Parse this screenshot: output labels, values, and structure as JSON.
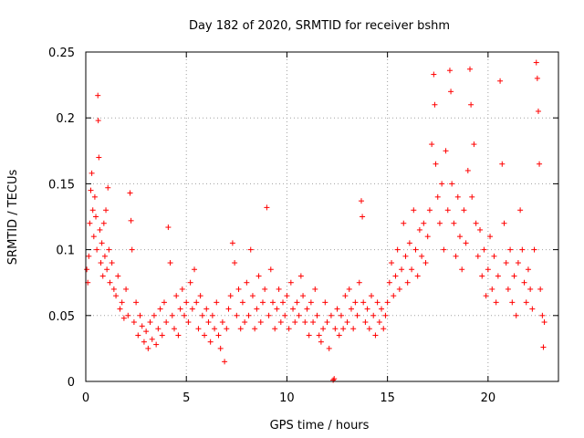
{
  "chart_data": {
    "type": "scatter",
    "title": "Day 182 of 2020, SRMTID for receiver bshm",
    "xlabel": "GPS time / hours",
    "ylabel": "SRMTID / TECUs",
    "xlim": [
      0,
      23.5
    ],
    "ylim": [
      0,
      0.25
    ],
    "xticks": [
      0,
      5,
      10,
      15,
      20
    ],
    "yticks": [
      0,
      0.05,
      0.1,
      0.15,
      0.2,
      0.25
    ],
    "xtick_labels": [
      "0",
      "5",
      "10",
      "15",
      "20"
    ],
    "ytick_labels": [
      "0",
      "0.05",
      "0.1",
      "0.15",
      "0.2",
      "0.25"
    ],
    "grid": true,
    "marker": "+",
    "marker_color": "#ff0000",
    "series": [
      {
        "name": "SRMTID",
        "points": [
          [
            0.05,
            0.085
          ],
          [
            0.1,
            0.075
          ],
          [
            0.15,
            0.095
          ],
          [
            0.2,
            0.12
          ],
          [
            0.25,
            0.145
          ],
          [
            0.3,
            0.158
          ],
          [
            0.35,
            0.13
          ],
          [
            0.4,
            0.11
          ],
          [
            0.45,
            0.14
          ],
          [
            0.5,
            0.125
          ],
          [
            0.55,
            0.1
          ],
          [
            0.6,
            0.217
          ],
          [
            0.62,
            0.198
          ],
          [
            0.65,
            0.17
          ],
          [
            0.7,
            0.115
          ],
          [
            0.75,
            0.09
          ],
          [
            0.8,
            0.105
          ],
          [
            0.85,
            0.08
          ],
          [
            0.9,
            0.12
          ],
          [
            0.95,
            0.095
          ],
          [
            1.0,
            0.13
          ],
          [
            1.05,
            0.085
          ],
          [
            1.1,
            0.147
          ],
          [
            1.15,
            0.1
          ],
          [
            1.2,
            0.075
          ],
          [
            1.3,
            0.09
          ],
          [
            1.4,
            0.07
          ],
          [
            1.5,
            0.065
          ],
          [
            1.6,
            0.08
          ],
          [
            1.7,
            0.055
          ],
          [
            1.8,
            0.06
          ],
          [
            1.9,
            0.048
          ],
          [
            2.0,
            0.07
          ],
          [
            2.1,
            0.05
          ],
          [
            2.2,
            0.143
          ],
          [
            2.25,
            0.122
          ],
          [
            2.3,
            0.1
          ],
          [
            2.4,
            0.045
          ],
          [
            2.5,
            0.06
          ],
          [
            2.6,
            0.035
          ],
          [
            2.7,
            0.05
          ],
          [
            2.8,
            0.042
          ],
          [
            2.9,
            0.03
          ],
          [
            3.0,
            0.038
          ],
          [
            3.1,
            0.025
          ],
          [
            3.2,
            0.045
          ],
          [
            3.3,
            0.032
          ],
          [
            3.4,
            0.05
          ],
          [
            3.5,
            0.028
          ],
          [
            3.6,
            0.04
          ],
          [
            3.7,
            0.055
          ],
          [
            3.8,
            0.035
          ],
          [
            3.9,
            0.06
          ],
          [
            4.0,
            0.045
          ],
          [
            4.1,
            0.117
          ],
          [
            4.2,
            0.09
          ],
          [
            4.3,
            0.05
          ],
          [
            4.4,
            0.04
          ],
          [
            4.5,
            0.065
          ],
          [
            4.6,
            0.035
          ],
          [
            4.7,
            0.055
          ],
          [
            4.8,
            0.07
          ],
          [
            4.9,
            0.05
          ],
          [
            5.0,
            0.06
          ],
          [
            5.1,
            0.045
          ],
          [
            5.2,
            0.075
          ],
          [
            5.3,
            0.055
          ],
          [
            5.4,
            0.085
          ],
          [
            5.5,
            0.06
          ],
          [
            5.6,
            0.04
          ],
          [
            5.7,
            0.065
          ],
          [
            5.8,
            0.05
          ],
          [
            5.9,
            0.035
          ],
          [
            6.0,
            0.055
          ],
          [
            6.1,
            0.045
          ],
          [
            6.2,
            0.03
          ],
          [
            6.3,
            0.05
          ],
          [
            6.4,
            0.04
          ],
          [
            6.5,
            0.06
          ],
          [
            6.6,
            0.035
          ],
          [
            6.7,
            0.025
          ],
          [
            6.8,
            0.045
          ],
          [
            6.9,
            0.015
          ],
          [
            7.0,
            0.04
          ],
          [
            7.1,
            0.055
          ],
          [
            7.2,
            0.065
          ],
          [
            7.3,
            0.105
          ],
          [
            7.4,
            0.09
          ],
          [
            7.5,
            0.05
          ],
          [
            7.6,
            0.07
          ],
          [
            7.7,
            0.04
          ],
          [
            7.8,
            0.06
          ],
          [
            7.9,
            0.045
          ],
          [
            8.0,
            0.075
          ],
          [
            8.1,
            0.05
          ],
          [
            8.2,
            0.1
          ],
          [
            8.3,
            0.065
          ],
          [
            8.4,
            0.04
          ],
          [
            8.5,
            0.055
          ],
          [
            8.6,
            0.08
          ],
          [
            8.7,
            0.045
          ],
          [
            8.8,
            0.06
          ],
          [
            8.9,
            0.07
          ],
          [
            9.0,
            0.132
          ],
          [
            9.1,
            0.05
          ],
          [
            9.2,
            0.085
          ],
          [
            9.3,
            0.06
          ],
          [
            9.4,
            0.04
          ],
          [
            9.5,
            0.055
          ],
          [
            9.6,
            0.07
          ],
          [
            9.7,
            0.045
          ],
          [
            9.8,
            0.06
          ],
          [
            9.9,
            0.05
          ],
          [
            10.0,
            0.065
          ],
          [
            10.1,
            0.04
          ],
          [
            10.2,
            0.075
          ],
          [
            10.3,
            0.055
          ],
          [
            10.4,
            0.045
          ],
          [
            10.5,
            0.06
          ],
          [
            10.6,
            0.05
          ],
          [
            10.7,
            0.08
          ],
          [
            10.8,
            0.065
          ],
          [
            10.9,
            0.045
          ],
          [
            11.0,
            0.055
          ],
          [
            11.1,
            0.035
          ],
          [
            11.2,
            0.06
          ],
          [
            11.3,
            0.045
          ],
          [
            11.4,
            0.07
          ],
          [
            11.5,
            0.05
          ],
          [
            11.6,
            0.035
          ],
          [
            11.7,
            0.03
          ],
          [
            11.8,
            0.04
          ],
          [
            11.9,
            0.06
          ],
          [
            12.0,
            0.045
          ],
          [
            12.1,
            0.025
          ],
          [
            12.2,
            0.05
          ],
          [
            12.3,
            0.001
          ],
          [
            12.35,
            0.002
          ],
          [
            12.4,
            0.04
          ],
          [
            12.5,
            0.055
          ],
          [
            12.6,
            0.035
          ],
          [
            12.7,
            0.05
          ],
          [
            12.8,
            0.04
          ],
          [
            12.9,
            0.065
          ],
          [
            13.0,
            0.045
          ],
          [
            13.1,
            0.07
          ],
          [
            13.2,
            0.055
          ],
          [
            13.3,
            0.04
          ],
          [
            13.4,
            0.06
          ],
          [
            13.5,
            0.05
          ],
          [
            13.6,
            0.075
          ],
          [
            13.7,
            0.137
          ],
          [
            13.75,
            0.125
          ],
          [
            13.8,
            0.06
          ],
          [
            13.9,
            0.045
          ],
          [
            14.0,
            0.055
          ],
          [
            14.1,
            0.04
          ],
          [
            14.2,
            0.065
          ],
          [
            14.3,
            0.05
          ],
          [
            14.4,
            0.035
          ],
          [
            14.5,
            0.06
          ],
          [
            14.6,
            0.045
          ],
          [
            14.7,
            0.055
          ],
          [
            14.8,
            0.04
          ],
          [
            14.9,
            0.05
          ],
          [
            15.0,
            0.06
          ],
          [
            15.1,
            0.075
          ],
          [
            15.2,
            0.09
          ],
          [
            15.3,
            0.065
          ],
          [
            15.4,
            0.08
          ],
          [
            15.5,
            0.1
          ],
          [
            15.6,
            0.07
          ],
          [
            15.7,
            0.085
          ],
          [
            15.8,
            0.12
          ],
          [
            15.9,
            0.095
          ],
          [
            16.0,
            0.075
          ],
          [
            16.1,
            0.105
          ],
          [
            16.2,
            0.085
          ],
          [
            16.3,
            0.13
          ],
          [
            16.4,
            0.1
          ],
          [
            16.5,
            0.08
          ],
          [
            16.6,
            0.115
          ],
          [
            16.7,
            0.095
          ],
          [
            16.8,
            0.12
          ],
          [
            16.9,
            0.09
          ],
          [
            17.0,
            0.11
          ],
          [
            17.1,
            0.13
          ],
          [
            17.2,
            0.18
          ],
          [
            17.3,
            0.233
          ],
          [
            17.35,
            0.21
          ],
          [
            17.4,
            0.165
          ],
          [
            17.5,
            0.14
          ],
          [
            17.6,
            0.12
          ],
          [
            17.7,
            0.15
          ],
          [
            17.8,
            0.1
          ],
          [
            17.9,
            0.175
          ],
          [
            18.0,
            0.13
          ],
          [
            18.1,
            0.236
          ],
          [
            18.15,
            0.22
          ],
          [
            18.2,
            0.15
          ],
          [
            18.3,
            0.12
          ],
          [
            18.4,
            0.095
          ],
          [
            18.5,
            0.14
          ],
          [
            18.6,
            0.11
          ],
          [
            18.7,
            0.085
          ],
          [
            18.8,
            0.13
          ],
          [
            18.9,
            0.105
          ],
          [
            19.0,
            0.16
          ],
          [
            19.1,
            0.237
          ],
          [
            19.15,
            0.21
          ],
          [
            19.2,
            0.14
          ],
          [
            19.3,
            0.18
          ],
          [
            19.4,
            0.12
          ],
          [
            19.5,
            0.095
          ],
          [
            19.6,
            0.115
          ],
          [
            19.7,
            0.08
          ],
          [
            19.8,
            0.1
          ],
          [
            19.9,
            0.065
          ],
          [
            20.0,
            0.085
          ],
          [
            20.1,
            0.11
          ],
          [
            20.2,
            0.07
          ],
          [
            20.3,
            0.095
          ],
          [
            20.4,
            0.06
          ],
          [
            20.5,
            0.08
          ],
          [
            20.6,
            0.228
          ],
          [
            20.7,
            0.165
          ],
          [
            20.8,
            0.12
          ],
          [
            20.9,
            0.09
          ],
          [
            21.0,
            0.07
          ],
          [
            21.1,
            0.1
          ],
          [
            21.2,
            0.06
          ],
          [
            21.3,
            0.08
          ],
          [
            21.4,
            0.05
          ],
          [
            21.5,
            0.09
          ],
          [
            21.6,
            0.13
          ],
          [
            21.7,
            0.1
          ],
          [
            21.8,
            0.075
          ],
          [
            21.9,
            0.06
          ],
          [
            22.0,
            0.085
          ],
          [
            22.1,
            0.07
          ],
          [
            22.2,
            0.055
          ],
          [
            22.3,
            0.1
          ],
          [
            22.4,
            0.242
          ],
          [
            22.45,
            0.23
          ],
          [
            22.5,
            0.205
          ],
          [
            22.55,
            0.165
          ],
          [
            22.6,
            0.07
          ],
          [
            22.7,
            0.05
          ],
          [
            22.75,
            0.026
          ],
          [
            22.8,
            0.045
          ]
        ]
      }
    ]
  }
}
